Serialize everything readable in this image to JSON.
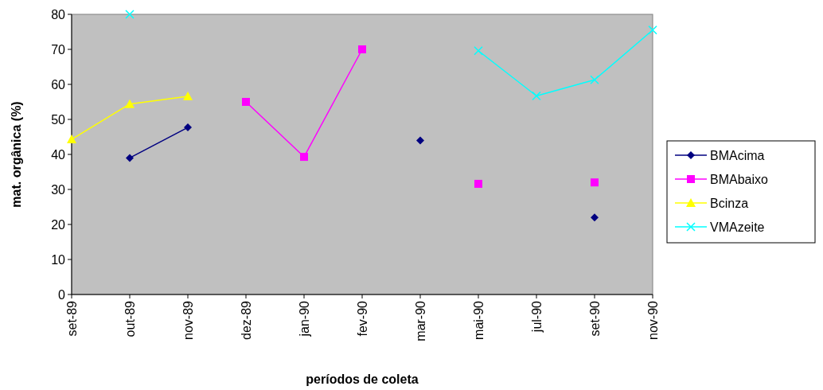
{
  "chart_data": {
    "type": "line",
    "xlabel": "períodos de coleta",
    "ylabel": "mat. orgânica (%)",
    "categories": [
      "set-89",
      "out-89",
      "nov-89",
      "dez-89",
      "jan-90",
      "fev-90",
      "mar-90",
      "mai-90",
      "jul-90",
      "set-90",
      "nov-90"
    ],
    "series": [
      {
        "name": "BMAcima",
        "color": "#000080",
        "marker": "diamond",
        "values": [
          null,
          39,
          47.7,
          null,
          null,
          null,
          44,
          null,
          null,
          22,
          null
        ]
      },
      {
        "name": "BMAbaixo",
        "color": "#ff00ff",
        "marker": "square",
        "values": [
          null,
          null,
          null,
          55,
          39.3,
          70,
          null,
          31.6,
          null,
          32,
          null
        ]
      },
      {
        "name": "Bcinza",
        "color": "#ffff00",
        "marker": "triangle",
        "values": [
          44.3,
          54.4,
          56.6,
          null,
          null,
          null,
          null,
          null,
          null,
          null,
          null
        ]
      },
      {
        "name": "VMAzeite",
        "color": "#00ffff",
        "marker": "cross",
        "values": [
          null,
          80,
          null,
          null,
          null,
          null,
          null,
          69.6,
          56.7,
          61.3,
          75.5
        ]
      }
    ],
    "ylim": [
      0,
      80
    ],
    "yticks": [
      0,
      10,
      20,
      30,
      40,
      50,
      60,
      70,
      80
    ],
    "grid": false,
    "legend": "right",
    "line_style": "solid"
  }
}
